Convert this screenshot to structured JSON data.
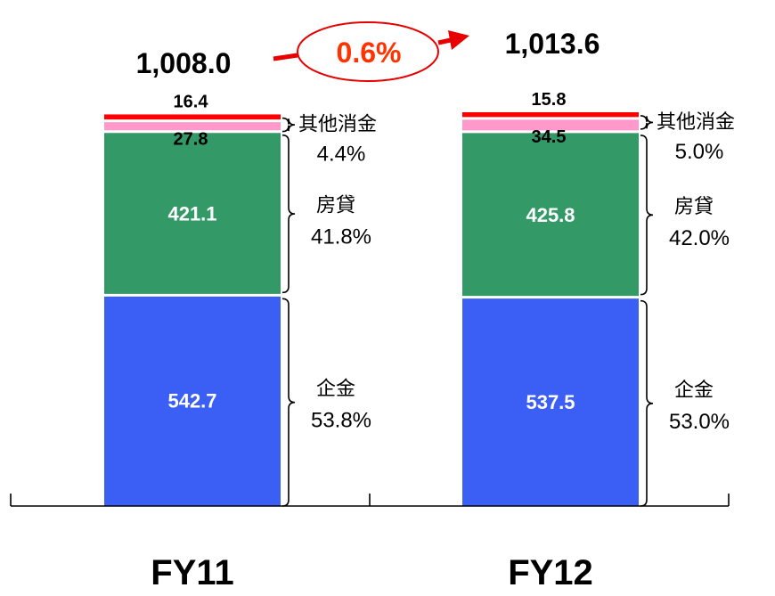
{
  "chart_data": {
    "type": "bar",
    "stacked": true,
    "categories": [
      "FY11",
      "FY12"
    ],
    "totals": [
      "1,008.0",
      "1,013.6"
    ],
    "growth_label": "0.6%",
    "series": [
      {
        "name": "企金",
        "values": [
          542.7,
          537.5
        ],
        "value_labels": [
          "542.7",
          "537.5"
        ],
        "share_labels": [
          "53.8%",
          "53.0%"
        ],
        "color": "#3b5ef5"
      },
      {
        "name": "房貸",
        "values": [
          421.1,
          425.8
        ],
        "value_labels": [
          "421.1",
          "425.8"
        ],
        "share_labels": [
          "41.8%",
          "42.0%"
        ],
        "color": "#339966"
      },
      {
        "values": [
          27.8,
          34.5
        ],
        "value_labels": [
          "27.8",
          "34.5"
        ],
        "color": "#ff99cc"
      },
      {
        "values": [
          16.4,
          15.8
        ],
        "value_labels": [
          "16.4",
          "15.8"
        ],
        "color": "#ff0000"
      }
    ],
    "other_consumer_group": {
      "name": "其他消金",
      "share_labels": [
        "4.4%",
        "5.0%"
      ]
    },
    "xlabel": "",
    "ylabel": "",
    "ylim": [
      0,
      1013.6
    ],
    "grid": false,
    "legend": "none"
  }
}
